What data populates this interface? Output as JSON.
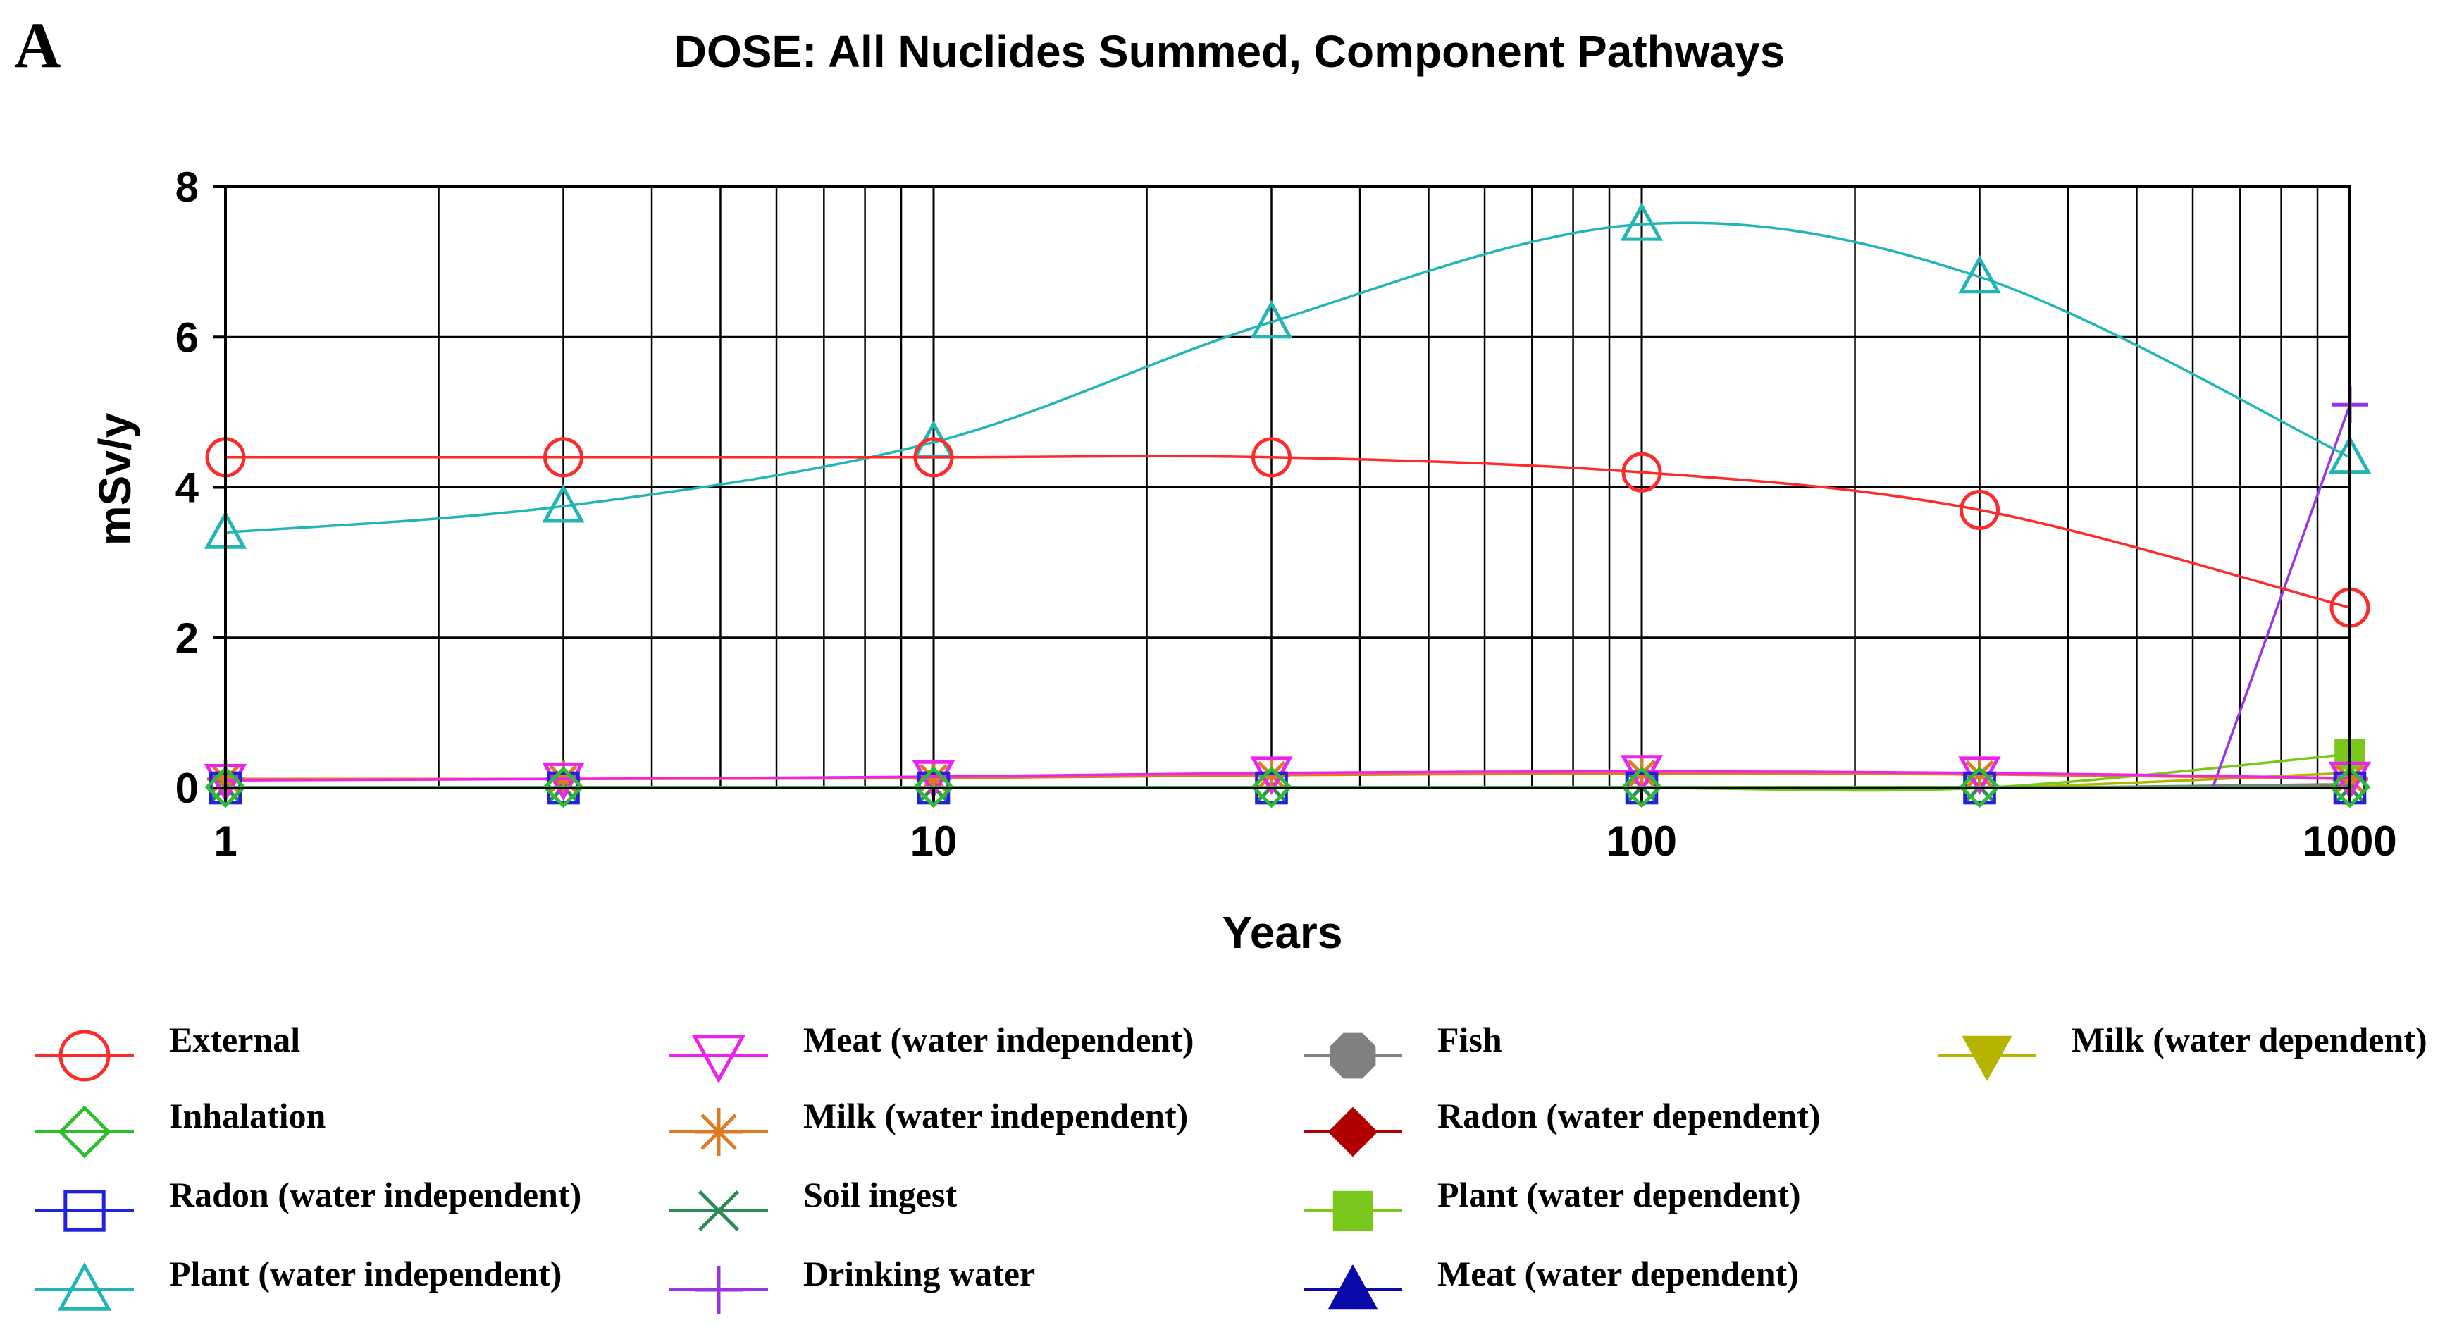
{
  "panel_label": "A",
  "chart_data": {
    "type": "line",
    "title": "DOSE: All Nuclides Summed, Component Pathways",
    "xlabel": "Years",
    "ylabel": "mSv/y",
    "x_scale": "log",
    "xlim": [
      1,
      1000
    ],
    "ylim": [
      0,
      8
    ],
    "x_ticks": [
      "1",
      "10",
      "100",
      "1000"
    ],
    "y_ticks": [
      "0",
      "2",
      "4",
      "6",
      "8"
    ],
    "grid": true,
    "legend_position": "bottom",
    "x": [
      1,
      3,
      10,
      30,
      100,
      300,
      1000
    ],
    "series": [
      {
        "name": "External",
        "color": "#ff2a2a",
        "marker": "circle-open",
        "values": [
          4.4,
          4.4,
          4.4,
          4.4,
          4.2,
          3.7,
          2.4
        ]
      },
      {
        "name": "Inhalation",
        "color": "#2ebd2e",
        "marker": "diamond-open",
        "values": [
          0.01,
          0.01,
          0.01,
          0.01,
          0.01,
          0.01,
          0.01
        ]
      },
      {
        "name": "Radon (water independent)",
        "color": "#2222dd",
        "marker": "square-open",
        "values": [
          0.0,
          0.0,
          0.0,
          0.0,
          0.0,
          0.0,
          0.0
        ]
      },
      {
        "name": "Plant (water independent)",
        "color": "#22b5b5",
        "marker": "triangle-open",
        "values": [
          3.4,
          3.75,
          4.6,
          6.2,
          7.5,
          6.8,
          4.4
        ]
      },
      {
        "name": "Meat (water independent)",
        "color": "#ee22ee",
        "marker": "triangle-down-open",
        "values": [
          0.1,
          0.12,
          0.15,
          0.2,
          0.22,
          0.2,
          0.13
        ]
      },
      {
        "name": "Milk (water independent)",
        "color": "#e07a20",
        "marker": "asterisk",
        "values": [
          0.12,
          0.12,
          0.13,
          0.17,
          0.19,
          0.18,
          0.12
        ]
      },
      {
        "name": "Soil ingest",
        "color": "#2e8b57",
        "marker": "x",
        "values": [
          0.01,
          0.01,
          0.01,
          0.01,
          0.01,
          0.01,
          0.0
        ]
      },
      {
        "name": "Drinking water",
        "color": "#9a32e6",
        "marker": "plus",
        "values": [
          0.0,
          0.0,
          0.0,
          0.0,
          0.0,
          0.0,
          5.1
        ]
      },
      {
        "name": "Fish",
        "color": "#808080",
        "marker": "octagon-filled",
        "values": [
          0.0,
          0.0,
          0.0,
          0.0,
          0.0,
          0.0,
          0.05
        ]
      },
      {
        "name": "Radon (water dependent)",
        "color": "#b00000",
        "marker": "diamond-filled",
        "values": [
          0.0,
          0.0,
          0.0,
          0.0,
          0.0,
          0.0,
          0.02
        ]
      },
      {
        "name": "Plant (water dependent)",
        "color": "#7ac71c",
        "marker": "square-filled",
        "values": [
          0.0,
          0.0,
          0.0,
          0.0,
          0.0,
          0.0,
          0.45
        ]
      },
      {
        "name": "Meat (water dependent)",
        "color": "#0a0aaa",
        "marker": "triangle-filled",
        "values": [
          0.0,
          0.0,
          0.0,
          0.0,
          0.0,
          0.0,
          0.03
        ]
      },
      {
        "name": "Milk (water dependent)",
        "color": "#b5b500",
        "marker": "triangle-down-filled",
        "values": [
          0.0,
          0.0,
          0.0,
          0.0,
          0.0,
          0.0,
          0.2
        ]
      }
    ]
  }
}
